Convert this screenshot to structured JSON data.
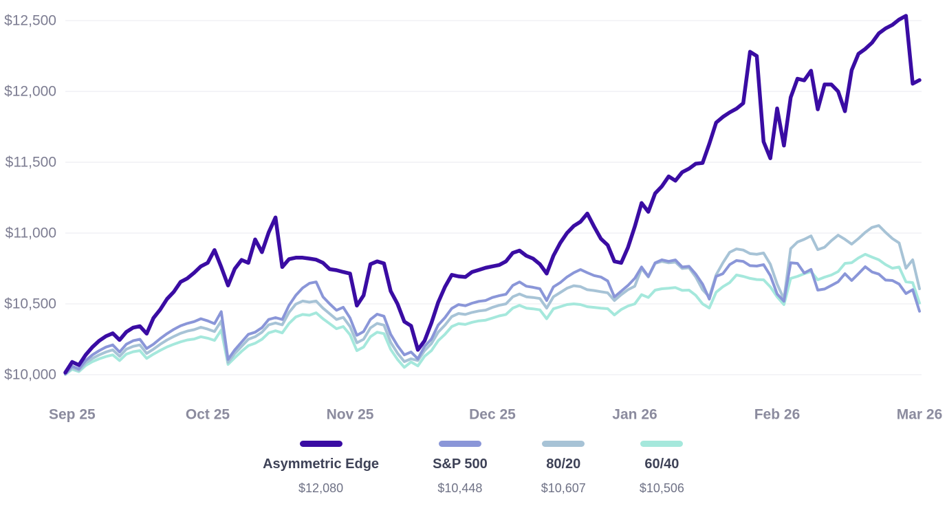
{
  "chart_data": {
    "type": "line",
    "x_axis": {
      "unit": "trading-day",
      "tick_labels": [
        "Sep 25",
        "Oct 25",
        "Nov 25",
        "Dec 25",
        "Jan 26",
        "Feb 26",
        "Mar 26"
      ],
      "tick_days": [
        1,
        21,
        42,
        63,
        84,
        105,
        126
      ],
      "domain": [
        0,
        126
      ]
    },
    "y_axis": {
      "tick_labels": [
        "$10,000",
        "$10,500",
        "$11,000",
        "$11,500",
        "$12,000",
        "$12,500"
      ],
      "tick_values": [
        10000,
        10500,
        11000,
        11500,
        12000,
        12500
      ],
      "ylim": [
        10000,
        12500
      ],
      "grid": true
    },
    "legend_position": "bottom",
    "series": [
      {
        "name": "Asymmetric Edge",
        "color": "#3a0ca3",
        "final_value_label": "$12,080",
        "values": [
          10015,
          10090,
          10068,
          10140,
          10195,
          10240,
          10272,
          10292,
          10245,
          10302,
          10332,
          10342,
          10290,
          10400,
          10460,
          10535,
          10585,
          10655,
          10680,
          10720,
          10765,
          10790,
          10880,
          10760,
          10630,
          10748,
          10810,
          10790,
          10955,
          10865,
          11005,
          11110,
          10760,
          10816,
          10826,
          10826,
          10820,
          10812,
          10790,
          10745,
          10738,
          10725,
          10714,
          10488,
          10560,
          10780,
          10800,
          10786,
          10590,
          10500,
          10375,
          10345,
          10175,
          10240,
          10365,
          10510,
          10620,
          10705,
          10694,
          10690,
          10725,
          10740,
          10755,
          10765,
          10775,
          10800,
          10860,
          10876,
          10840,
          10820,
          10780,
          10714,
          10840,
          10930,
          11000,
          11050,
          11080,
          11138,
          11045,
          10960,
          10915,
          10800,
          10790,
          10898,
          11045,
          11212,
          11150,
          11280,
          11330,
          11400,
          11370,
          11430,
          11455,
          11490,
          11495,
          11630,
          11780,
          11820,
          11852,
          11878,
          11917,
          12280,
          12250,
          11645,
          11528,
          11880,
          11618,
          11958,
          12090,
          12078,
          12146,
          11874,
          12049,
          12049,
          12000,
          11860,
          12150,
          12266,
          12300,
          12344,
          12410,
          12445,
          12470,
          12508,
          12534,
          12055,
          12080
        ]
      },
      {
        "name": "S&P 500",
        "color": "#8a96d8",
        "final_value_label": "$10,448",
        "values": [
          10005,
          10060,
          10040,
          10100,
          10140,
          10170,
          10195,
          10210,
          10160,
          10215,
          10240,
          10250,
          10185,
          10215,
          10255,
          10290,
          10320,
          10345,
          10362,
          10375,
          10395,
          10380,
          10360,
          10445,
          10108,
          10175,
          10230,
          10285,
          10300,
          10332,
          10390,
          10403,
          10390,
          10490,
          10560,
          10612,
          10645,
          10655,
          10550,
          10500,
          10455,
          10476,
          10400,
          10278,
          10305,
          10390,
          10427,
          10413,
          10285,
          10205,
          10140,
          10160,
          10112,
          10200,
          10252,
          10350,
          10403,
          10468,
          10495,
          10487,
          10505,
          10518,
          10524,
          10545,
          10558,
          10568,
          10630,
          10655,
          10625,
          10617,
          10607,
          10524,
          10620,
          10650,
          10690,
          10720,
          10742,
          10720,
          10700,
          10690,
          10662,
          10549,
          10590,
          10630,
          10680,
          10760,
          10694,
          10790,
          10811,
          10800,
          10810,
          10760,
          10765,
          10710,
          10640,
          10534,
          10694,
          10713,
          10777,
          10806,
          10800,
          10770,
          10767,
          10777,
          10700,
          10570,
          10519,
          10790,
          10786,
          10718,
          10743,
          10597,
          10605,
          10630,
          10656,
          10713,
          10665,
          10713,
          10762,
          10725,
          10710,
          10668,
          10665,
          10640,
          10573,
          10600,
          10448
        ]
      },
      {
        "name": "80/20",
        "color": "#a7c3d6",
        "final_value_label": "$10,607",
        "values": [
          10003,
          10048,
          10030,
          10082,
          10115,
          10140,
          10160,
          10175,
          10130,
          10180,
          10200,
          10210,
          10150,
          10180,
          10215,
          10245,
          10270,
          10292,
          10308,
          10318,
          10335,
          10322,
          10305,
          10379,
          10087,
          10150,
          10200,
          10250,
          10268,
          10300,
          10352,
          10365,
          10352,
          10440,
          10498,
          10520,
          10512,
          10520,
          10470,
          10430,
          10390,
          10405,
          10340,
          10225,
          10250,
          10330,
          10362,
          10350,
          10228,
          10152,
          10092,
          10112,
          10100,
          10170,
          10220,
          10300,
          10350,
          10410,
          10432,
          10425,
          10440,
          10450,
          10456,
          10475,
          10490,
          10500,
          10550,
          10570,
          10550,
          10545,
          10538,
          10470,
          10550,
          10580,
          10610,
          10628,
          10622,
          10600,
          10594,
          10586,
          10578,
          10524,
          10565,
          10600,
          10625,
          10750,
          10690,
          10786,
          10800,
          10790,
          10795,
          10750,
          10755,
          10690,
          10600,
          10549,
          10705,
          10790,
          10864,
          10888,
          10880,
          10855,
          10850,
          10859,
          10780,
          10640,
          10534,
          10890,
          10937,
          10956,
          10980,
          10883,
          10900,
          10946,
          10985,
          10956,
          10922,
          10961,
          11005,
          11040,
          11053,
          11005,
          10961,
          10930,
          10752,
          10811,
          10607
        ]
      },
      {
        "name": "60/40",
        "color": "#a5e8dc",
        "final_value_label": "$10,506",
        "values": [
          10002,
          10038,
          10022,
          10065,
          10092,
          10112,
          10128,
          10140,
          10100,
          10145,
          10162,
          10170,
          10115,
          10145,
          10172,
          10196,
          10215,
          10232,
          10245,
          10252,
          10268,
          10258,
          10242,
          10315,
          10073,
          10120,
          10165,
          10205,
          10222,
          10250,
          10295,
          10310,
          10295,
          10362,
          10408,
          10425,
          10420,
          10437,
          10395,
          10360,
          10325,
          10340,
          10282,
          10170,
          10195,
          10268,
          10300,
          10290,
          10178,
          10108,
          10052,
          10090,
          10062,
          10130,
          10170,
          10240,
          10285,
          10340,
          10360,
          10355,
          10370,
          10380,
          10385,
          10400,
          10415,
          10425,
          10470,
          10490,
          10470,
          10465,
          10458,
          10395,
          10465,
          10480,
          10495,
          10500,
          10495,
          10480,
          10475,
          10470,
          10466,
          10422,
          10460,
          10485,
          10500,
          10565,
          10545,
          10597,
          10607,
          10610,
          10615,
          10595,
          10597,
          10560,
          10500,
          10471,
          10582,
          10621,
          10650,
          10704,
          10694,
          10680,
          10672,
          10670,
          10620,
          10550,
          10495,
          10680,
          10694,
          10713,
          10728,
          10670,
          10689,
          10704,
          10728,
          10786,
          10791,
          10825,
          10850,
          10830,
          10811,
          10777,
          10752,
          10760,
          10656,
          10650,
          10506
        ]
      }
    ]
  },
  "legend": {
    "items": [
      {
        "label": "Asymmetric Edge",
        "value": "$12,080",
        "color": "#3a0ca3"
      },
      {
        "label": "S&P 500",
        "value": "$10,448",
        "color": "#8a96d8"
      },
      {
        "label": "80/20",
        "value": "$10,607",
        "color": "#a7c3d6"
      },
      {
        "label": "60/40",
        "value": "$10,506",
        "color": "#a5e8dc"
      }
    ]
  }
}
